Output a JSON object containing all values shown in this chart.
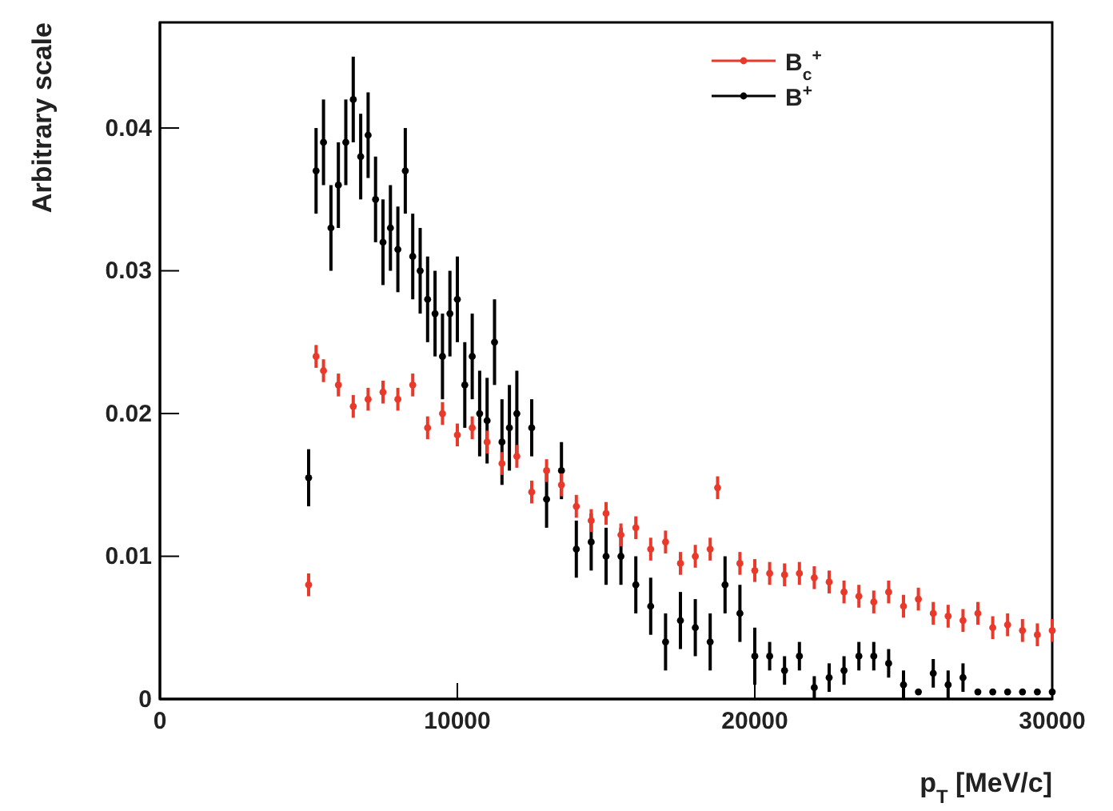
{
  "chart_data": {
    "type": "scatter",
    "xlabel": "p$_{T}$ [MeV/c]",
    "ylabel": "Arbitrary scale",
    "xlim": [
      0,
      30000
    ],
    "ylim": [
      0,
      0.0474
    ],
    "xticks": [
      0,
      10000,
      20000,
      30000
    ],
    "yticks": [
      0,
      0.01,
      0.02,
      0.03,
      0.04
    ],
    "grid": false,
    "legend": "top right",
    "marker": "circle",
    "series": [
      {
        "name": "B$_{c}$$^{+}$",
        "color": "#e8392b",
        "x": [
          5000,
          5250,
          5500,
          6000,
          6500,
          7000,
          7500,
          8000,
          8500,
          9000,
          9500,
          10000,
          10500,
          11000,
          11500,
          12000,
          12500,
          13000,
          13500,
          14000,
          14500,
          15000,
          15500,
          16000,
          16500,
          17000,
          17500,
          18000,
          18500,
          18750,
          19500,
          20000,
          20500,
          21000,
          21500,
          22000,
          22500,
          23000,
          23500,
          24000,
          24500,
          25000,
          25500,
          26000,
          26500,
          27000,
          27500,
          28000,
          28500,
          29000,
          29500,
          30000
        ],
        "values": [
          0.008,
          0.024,
          0.023,
          0.022,
          0.0205,
          0.021,
          0.0215,
          0.021,
          0.022,
          0.019,
          0.02,
          0.0185,
          0.019,
          0.018,
          0.0165,
          0.017,
          0.0145,
          0.016,
          0.015,
          0.0135,
          0.0125,
          0.013,
          0.0115,
          0.012,
          0.0105,
          0.011,
          0.0095,
          0.01,
          0.0105,
          0.0148,
          0.0095,
          0.009,
          0.0088,
          0.0087,
          0.0088,
          0.0085,
          0.0082,
          0.0075,
          0.0072,
          0.0068,
          0.0075,
          0.0065,
          0.007,
          0.006,
          0.0058,
          0.0055,
          0.006,
          0.005,
          0.0052,
          0.0048,
          0.0045,
          0.0048
        ],
        "errors": [
          0.0008,
          0.0008,
          0.0008,
          0.0008,
          0.0008,
          0.0008,
          0.0008,
          0.0008,
          0.0008,
          0.0008,
          0.0008,
          0.0008,
          0.0008,
          0.0008,
          0.0008,
          0.0008,
          0.0008,
          0.0008,
          0.0008,
          0.0008,
          0.0008,
          0.0008,
          0.0008,
          0.0008,
          0.0008,
          0.0008,
          0.0008,
          0.0008,
          0.0008,
          0.0008,
          0.0008,
          0.0008,
          0.0008,
          0.0008,
          0.0008,
          0.0008,
          0.0008,
          0.0008,
          0.0008,
          0.0008,
          0.0008,
          0.0008,
          0.0008,
          0.0008,
          0.0008,
          0.0008,
          0.0008,
          0.0008,
          0.0008,
          0.0008,
          0.0008,
          0.0008
        ]
      },
      {
        "name": "B$^{+}$",
        "color": "#000000",
        "x": [
          5000,
          5250,
          5500,
          5750,
          6000,
          6250,
          6500,
          6750,
          7000,
          7250,
          7500,
          7750,
          8000,
          8250,
          8500,
          8750,
          9000,
          9250,
          9500,
          9750,
          10000,
          10250,
          10500,
          10750,
          11000,
          11250,
          11500,
          11750,
          12000,
          12500,
          13000,
          13500,
          14000,
          14500,
          15000,
          15500,
          16000,
          16500,
          17000,
          17500,
          18000,
          18500,
          19000,
          19500,
          20000,
          20500,
          21000,
          21500,
          22000,
          22500,
          23000,
          23500,
          24000,
          24500,
          25000,
          25500,
          26000,
          26500,
          27000,
          27500,
          28000,
          28500,
          29000,
          29500,
          30000
        ],
        "values": [
          0.0155,
          0.037,
          0.039,
          0.033,
          0.036,
          0.039,
          0.042,
          0.038,
          0.0395,
          0.035,
          0.032,
          0.033,
          0.0315,
          0.037,
          0.031,
          0.03,
          0.028,
          0.027,
          0.024,
          0.027,
          0.028,
          0.022,
          0.024,
          0.02,
          0.0195,
          0.025,
          0.018,
          0.019,
          0.02,
          0.019,
          0.014,
          0.016,
          0.0105,
          0.011,
          0.01,
          0.01,
          0.008,
          0.0065,
          0.004,
          0.0055,
          0.005,
          0.004,
          0.008,
          0.006,
          0.003,
          0.003,
          0.002,
          0.003,
          0.0008,
          0.0015,
          0.002,
          0.003,
          0.003,
          0.0025,
          0.001,
          0.0005,
          0.0018,
          0.001,
          0.0015,
          0.0005,
          0.0005,
          0.0005,
          0.0005,
          0.0005,
          0.0005
        ],
        "errors": [
          0.002,
          0.003,
          0.003,
          0.003,
          0.003,
          0.003,
          0.003,
          0.003,
          0.003,
          0.003,
          0.003,
          0.003,
          0.003,
          0.003,
          0.003,
          0.003,
          0.003,
          0.003,
          0.003,
          0.003,
          0.003,
          0.003,
          0.003,
          0.003,
          0.003,
          0.003,
          0.003,
          0.003,
          0.003,
          0.002,
          0.002,
          0.002,
          0.002,
          0.002,
          0.002,
          0.002,
          0.002,
          0.002,
          0.002,
          0.002,
          0.002,
          0.002,
          0.002,
          0.002,
          0.002,
          0.001,
          0.001,
          0.001,
          0.0008,
          0.001,
          0.001,
          0.001,
          0.001,
          0.001,
          0.001,
          null,
          0.001,
          0.001,
          0.001,
          null,
          null,
          null,
          null,
          null,
          null
        ]
      }
    ]
  }
}
